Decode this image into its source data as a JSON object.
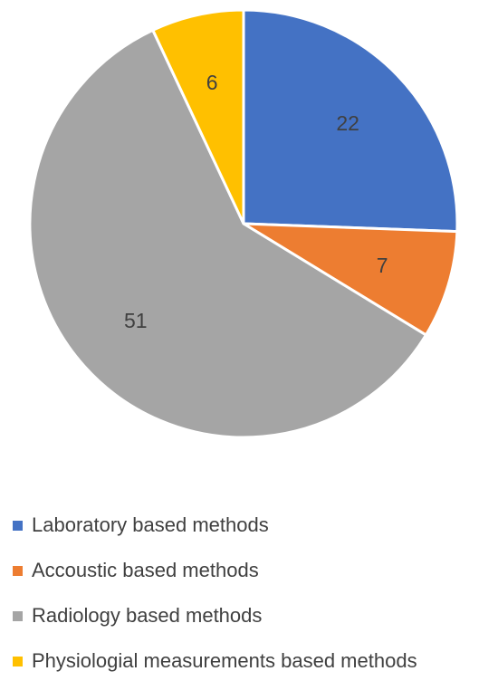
{
  "chart_data": {
    "type": "pie",
    "title": "",
    "start_angle_deg": 0,
    "direction": "clockwise",
    "legend_position": "bottom",
    "slices": [
      {
        "label": "Laboratory based methods",
        "value": 22,
        "color": "#4472C4"
      },
      {
        "label": "Accoustic based methods",
        "value": 7,
        "color": "#ED7D31"
      },
      {
        "label": "Radiology based methods",
        "value": 51,
        "color": "#A5A5A5"
      },
      {
        "label": "Physiologial measurements based methods",
        "value": 6,
        "color": "#FFC000"
      }
    ]
  }
}
